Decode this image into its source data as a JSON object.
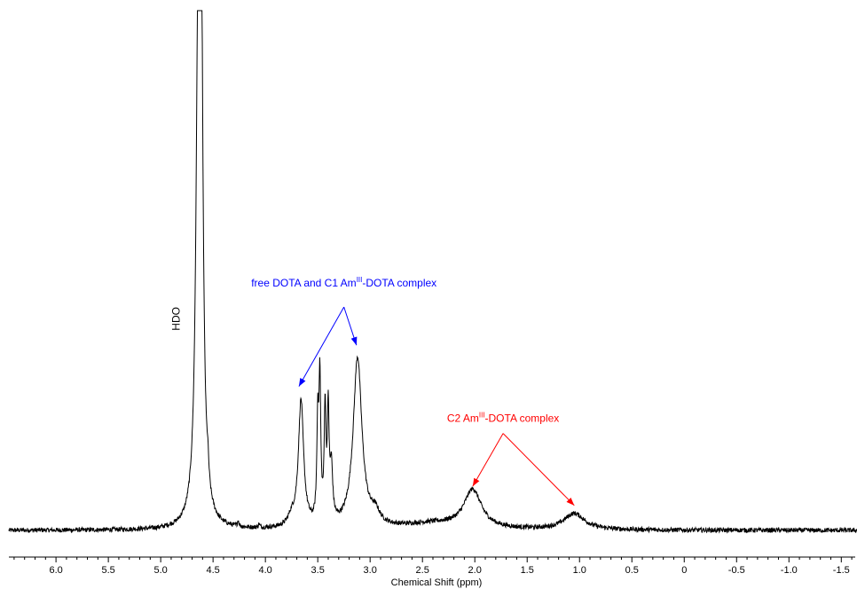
{
  "chart_data": {
    "type": "line",
    "xlabel": "Chemical Shift (ppm)",
    "ylabel": "",
    "title": "",
    "x_reversed": true,
    "xlim": [
      6.45,
      -1.65
    ],
    "ylim": [
      -0.03,
      1.05
    ],
    "x_ticks": [
      {
        "value": 6.0,
        "label": "6.0"
      },
      {
        "value": 5.5,
        "label": "5.5"
      },
      {
        "value": 5.0,
        "label": "5.0"
      },
      {
        "value": 4.5,
        "label": "4.5"
      },
      {
        "value": 4.0,
        "label": "4.0"
      },
      {
        "value": 3.5,
        "label": "3.5"
      },
      {
        "value": 3.0,
        "label": "3.0"
      },
      {
        "value": 2.5,
        "label": "2.5"
      },
      {
        "value": 2.0,
        "label": "2.0"
      },
      {
        "value": 1.5,
        "label": "1.5"
      },
      {
        "value": 1.0,
        "label": "1.0"
      },
      {
        "value": 0.5,
        "label": "0.5"
      },
      {
        "value": 0.0,
        "label": "0"
      },
      {
        "value": -0.5,
        "label": "-0.5"
      },
      {
        "value": -1.0,
        "label": "-1.0"
      },
      {
        "value": -1.5,
        "label": "-1.5"
      }
    ],
    "minor_tick_step": 0.1,
    "grid": false,
    "legend": "none",
    "line_color": "#000000",
    "peaks": [
      {
        "x": 4.64,
        "y": 1.6,
        "width": 0.025
      },
      {
        "x": 4.615,
        "y": 1.6,
        "width": 0.02
      },
      {
        "x": 4.55,
        "y": 0.06,
        "width": 0.01
      },
      {
        "x": 3.66,
        "y": 0.43,
        "width": 0.03
      },
      {
        "x": 3.5,
        "y": 0.33,
        "width": 0.01
      },
      {
        "x": 3.48,
        "y": 0.47,
        "width": 0.01
      },
      {
        "x": 3.43,
        "y": 0.38,
        "width": 0.01
      },
      {
        "x": 3.4,
        "y": 0.36,
        "width": 0.01
      },
      {
        "x": 3.37,
        "y": 0.18,
        "width": 0.015
      },
      {
        "x": 3.12,
        "y": 0.58,
        "width": 0.05
      },
      {
        "x": 2.95,
        "y": 0.04,
        "width": 0.05
      },
      {
        "x": 2.02,
        "y": 0.13,
        "width": 0.1
      },
      {
        "x": 1.05,
        "y": 0.055,
        "width": 0.12
      },
      {
        "x": 2.4,
        "y": 0.02,
        "width": 0.35
      },
      {
        "x": 4.26,
        "y": 0.02,
        "width": 0.008
      },
      {
        "x": 4.06,
        "y": 0.012,
        "width": 0.008
      },
      {
        "x": 3.75,
        "y": 0.03,
        "width": 0.04
      }
    ],
    "noise_amplitude": 0.008,
    "annotations": [
      {
        "text": "HDO",
        "sup": "",
        "suffix": "",
        "color": "#000000",
        "rotated": true,
        "anchor": {
          "x": 4.82,
          "y": 0.72
        },
        "arrows": []
      },
      {
        "text": "free DOTA and C1 Am",
        "sup": "III",
        "suffix": "-DOTA complex",
        "color": "#0000ff",
        "rotated": false,
        "anchor": {
          "x": 3.25,
          "y": 0.83
        },
        "arrows": [
          {
            "from": {
              "x": 3.25,
              "y": 0.76
            },
            "to": {
              "x": 3.68,
              "y": 0.49
            }
          },
          {
            "from": {
              "x": 3.25,
              "y": 0.76
            },
            "to": {
              "x": 3.13,
              "y": 0.63
            }
          }
        ]
      },
      {
        "text": "C2 Am",
        "sup": "III",
        "suffix": "-DOTA complex",
        "color": "#ff0000",
        "rotated": false,
        "anchor": {
          "x": 1.73,
          "y": 0.37
        },
        "arrows": [
          {
            "from": {
              "x": 1.73,
              "y": 0.33
            },
            "to": {
              "x": 2.02,
              "y": 0.15
            }
          },
          {
            "from": {
              "x": 1.73,
              "y": 0.33
            },
            "to": {
              "x": 1.05,
              "y": 0.085
            }
          }
        ]
      }
    ]
  }
}
